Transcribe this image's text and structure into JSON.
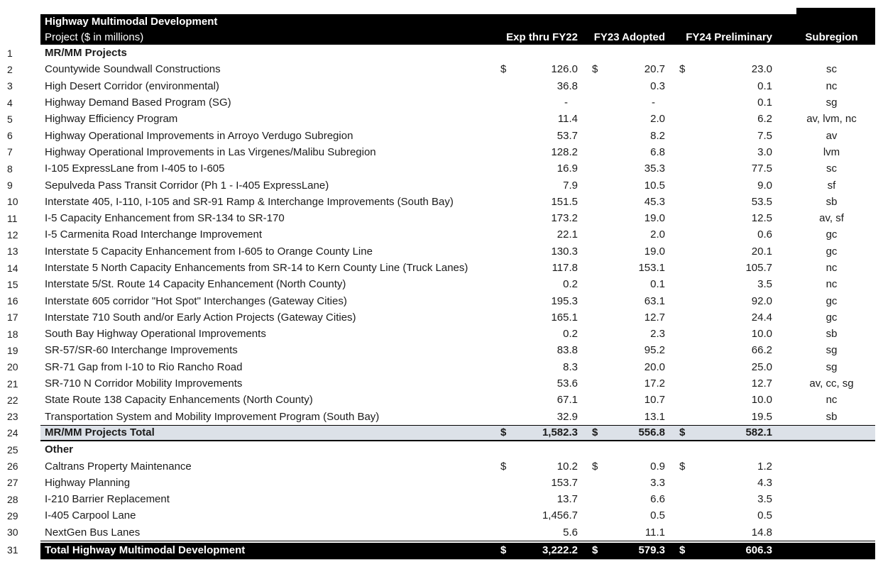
{
  "header": {
    "title": "Highway Multimodal Development",
    "subtitle": "Project ($ in millions)",
    "columns": [
      "Exp thru FY22",
      "FY23 Adopted",
      "FY24 Preliminary",
      "Subregion"
    ]
  },
  "currency_symbol": "$",
  "colors": {
    "header_bg": "#000000",
    "header_text": "#ffffff",
    "subtotal_bg": "#dce1e8",
    "total_bg": "#000000",
    "body_text": "#1b1b1b"
  },
  "rows": [
    {
      "num": "1",
      "name": "MR/MM Projects",
      "style": "section",
      "dollar": false,
      "fy22": "",
      "fy23": "",
      "fy24": "",
      "sub": ""
    },
    {
      "num": "2",
      "name": "Countywide Soundwall Constructions",
      "style": "normal",
      "dollar": true,
      "fy22": "126.0",
      "fy23": "20.7",
      "fy24": "23.0",
      "sub": "sc"
    },
    {
      "num": "3",
      "name": "High Desert Corridor (environmental)",
      "style": "normal",
      "dollar": false,
      "fy22": "36.8",
      "fy23": "0.3",
      "fy24": "0.1",
      "sub": "nc"
    },
    {
      "num": "4",
      "name": "Highway Demand Based Program (SG)",
      "style": "normal",
      "dollar": false,
      "fy22": "-",
      "fy23": "-",
      "fy24": "0.1",
      "sub": "sg"
    },
    {
      "num": "5",
      "name": "Highway Efficiency Program",
      "style": "normal",
      "dollar": false,
      "fy22": "11.4",
      "fy23": "2.0",
      "fy24": "6.2",
      "sub": "av, lvm, nc"
    },
    {
      "num": "6",
      "name": "Highway Operational Improvements in Arroyo Verdugo Subregion",
      "style": "normal",
      "dollar": false,
      "fy22": "53.7",
      "fy23": "8.2",
      "fy24": "7.5",
      "sub": "av"
    },
    {
      "num": "7",
      "name": "Highway Operational Improvements in Las Virgenes/Malibu Subregion",
      "style": "normal",
      "dollar": false,
      "fy22": "128.2",
      "fy23": "6.8",
      "fy24": "3.0",
      "sub": "lvm"
    },
    {
      "num": "8",
      "name": "I-105 ExpressLane from I-405 to I-605",
      "style": "normal",
      "dollar": false,
      "fy22": "16.9",
      "fy23": "35.3",
      "fy24": "77.5",
      "sub": "sc"
    },
    {
      "num": "9",
      "name": "Sepulveda Pass Transit Corridor (Ph 1 - I-405 ExpressLane)",
      "style": "normal",
      "dollar": false,
      "fy22": "7.9",
      "fy23": "10.5",
      "fy24": "9.0",
      "sub": "sf"
    },
    {
      "num": "10",
      "name": "Interstate 405, I-110, I-105 and SR-91 Ramp & Interchange Improvements (South Bay)",
      "style": "normal",
      "dollar": false,
      "fy22": "151.5",
      "fy23": "45.3",
      "fy24": "53.5",
      "sub": "sb"
    },
    {
      "num": "11",
      "name": "I-5 Capacity Enhancement from SR-134 to SR-170",
      "style": "normal",
      "dollar": false,
      "fy22": "173.2",
      "fy23": "19.0",
      "fy24": "12.5",
      "sub": "av, sf"
    },
    {
      "num": "12",
      "name": "I-5 Carmenita Road Interchange Improvement",
      "style": "normal",
      "dollar": false,
      "fy22": "22.1",
      "fy23": "2.0",
      "fy24": "0.6",
      "sub": "gc"
    },
    {
      "num": "13",
      "name": "Interstate 5 Capacity Enhancement from I-605 to Orange County Line",
      "style": "normal",
      "dollar": false,
      "fy22": "130.3",
      "fy23": "19.0",
      "fy24": "20.1",
      "sub": "gc"
    },
    {
      "num": "14",
      "name": "Interstate 5 North Capacity Enhancements from SR-14 to Kern County Line (Truck Lanes)",
      "style": "normal",
      "dollar": false,
      "fy22": "117.8",
      "fy23": "153.1",
      "fy24": "105.7",
      "sub": "nc"
    },
    {
      "num": "15",
      "name": "Interstate 5/St. Route 14 Capacity Enhancement (North County)",
      "style": "normal",
      "dollar": false,
      "fy22": "0.2",
      "fy23": "0.1",
      "fy24": "3.5",
      "sub": "nc"
    },
    {
      "num": "16",
      "name": "Interstate 605 corridor \"Hot Spot\" Interchanges (Gateway Cities)",
      "style": "normal",
      "dollar": false,
      "fy22": "195.3",
      "fy23": "63.1",
      "fy24": "92.0",
      "sub": "gc"
    },
    {
      "num": "17",
      "name": "Interstate 710 South and/or Early Action Projects (Gateway Cities)",
      "style": "normal",
      "dollar": false,
      "fy22": "165.1",
      "fy23": "12.7",
      "fy24": "24.4",
      "sub": "gc"
    },
    {
      "num": "18",
      "name": "South Bay Highway Operational Improvements",
      "style": "normal",
      "dollar": false,
      "fy22": "0.2",
      "fy23": "2.3",
      "fy24": "10.0",
      "sub": "sb"
    },
    {
      "num": "19",
      "name": "SR-57/SR-60 Interchange Improvements",
      "style": "normal",
      "dollar": false,
      "fy22": "83.8",
      "fy23": "95.2",
      "fy24": "66.2",
      "sub": "sg"
    },
    {
      "num": "20",
      "name": "SR-71 Gap from I-10 to Rio Rancho Road",
      "style": "normal",
      "dollar": false,
      "fy22": "8.3",
      "fy23": "20.0",
      "fy24": "25.0",
      "sub": "sg"
    },
    {
      "num": "21",
      "name": "SR-710 N Corridor Mobility Improvements",
      "style": "normal",
      "dollar": false,
      "fy22": "53.6",
      "fy23": "17.2",
      "fy24": "12.7",
      "sub": "av, cc, sg"
    },
    {
      "num": "22",
      "name": "State Route 138 Capacity Enhancements (North County)",
      "style": "normal",
      "dollar": false,
      "fy22": "67.1",
      "fy23": "10.7",
      "fy24": "10.0",
      "sub": "nc"
    },
    {
      "num": "23",
      "name": "Transportation System and Mobility Improvement Program (South Bay)",
      "style": "normal",
      "dollar": false,
      "fy22": "32.9",
      "fy23": "13.1",
      "fy24": "19.5",
      "sub": "sb"
    },
    {
      "num": "24",
      "name": "MR/MM Projects Total",
      "style": "subtotal",
      "dollar": true,
      "fy22": "1,582.3",
      "fy23": "556.8",
      "fy24": "582.1",
      "sub": ""
    },
    {
      "num": "25",
      "name": "Other",
      "style": "section",
      "dollar": false,
      "fy22": "",
      "fy23": "",
      "fy24": "",
      "sub": ""
    },
    {
      "num": "26",
      "name": "Caltrans Property Maintenance",
      "style": "normal",
      "dollar": true,
      "fy22": "10.2",
      "fy23": "0.9",
      "fy24": "1.2",
      "sub": ""
    },
    {
      "num": "27",
      "name": "Highway Planning",
      "style": "normal",
      "dollar": false,
      "fy22": "153.7",
      "fy23": "3.3",
      "fy24": "4.3",
      "sub": ""
    },
    {
      "num": "28",
      "name": "I-210 Barrier Replacement",
      "style": "normal",
      "dollar": false,
      "fy22": "13.7",
      "fy23": "6.6",
      "fy24": "3.5",
      "sub": ""
    },
    {
      "num": "29",
      "name": "I-405 Carpool Lane",
      "style": "normal",
      "dollar": false,
      "fy22": "1,456.7",
      "fy23": "0.5",
      "fy24": "0.5",
      "sub": ""
    },
    {
      "num": "30",
      "name": "NextGen Bus Lanes",
      "style": "normal",
      "dollar": false,
      "fy22": "5.6",
      "fy23": "11.1",
      "fy24": "14.8",
      "sub": ""
    },
    {
      "num": "31",
      "name": "Total Highway Multimodal Development",
      "style": "total",
      "dollar": true,
      "fy22": "3,222.2",
      "fy23": "579.3",
      "fy24": "606.3",
      "sub": ""
    }
  ]
}
